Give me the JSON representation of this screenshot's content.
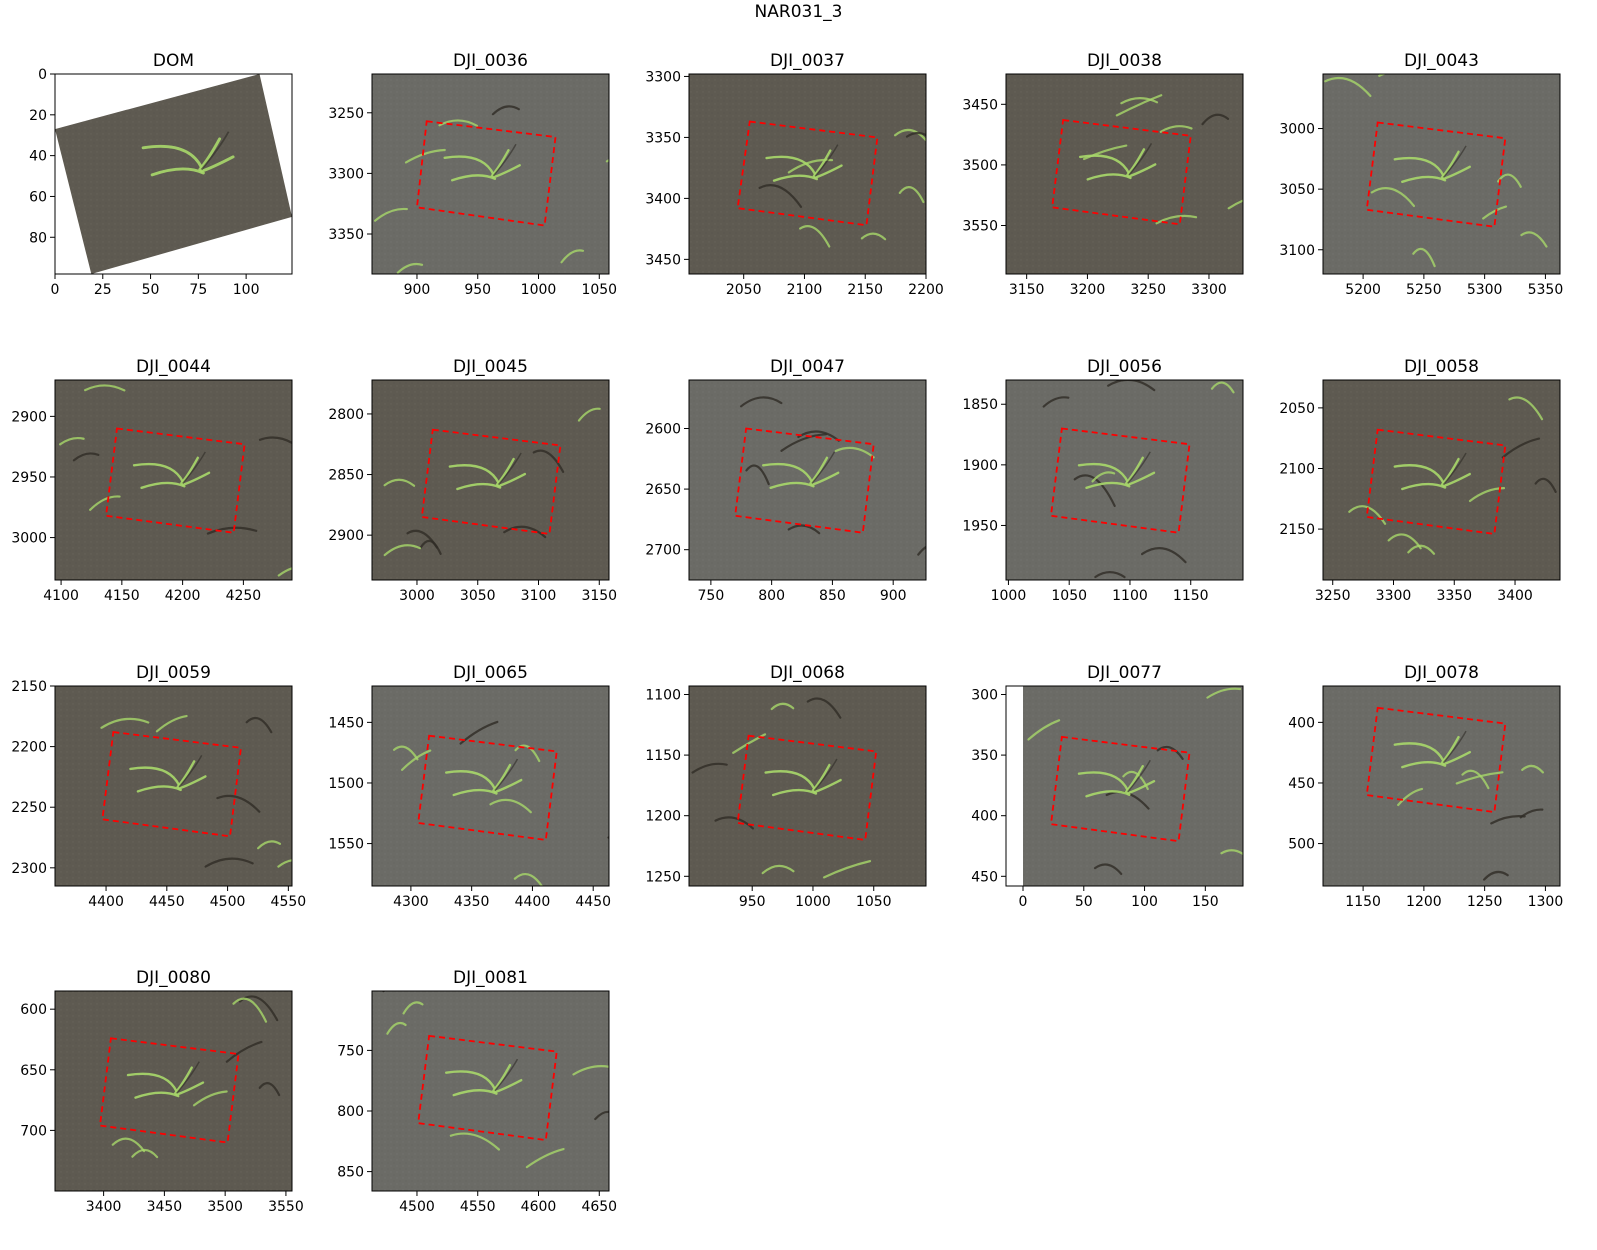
{
  "figure": {
    "title": "NAR031_3"
  },
  "colors": {
    "background": "#ffffff",
    "soil_dark": "#5e5a51",
    "soil_gray": "#6b6b66",
    "seedling": "#a8d86a",
    "shadow": "#2f2c26",
    "box_line": "#ff0000",
    "axis": "#000000"
  },
  "chart_data": [
    {
      "type": "image",
      "title": "DOM",
      "xticks": [
        0,
        25,
        50,
        75,
        100
      ],
      "xlim": [
        0,
        124
      ],
      "yticks": [
        0,
        20,
        40,
        60,
        80
      ],
      "ylim": [
        98,
        0
      ],
      "image_variant": "rotated-dom"
    },
    {
      "type": "image",
      "title": "DJI_0036",
      "xticks": [
        900,
        950,
        1000,
        1050
      ],
      "xlim": [
        863,
        1058
      ],
      "yticks": [
        3250,
        3300,
        3350
      ],
      "ylim": [
        3383,
        3218
      ],
      "box": [
        [
          908,
          3257
        ],
        [
          1014,
          3270
        ],
        [
          1005,
          3343
        ],
        [
          900,
          3328
        ]
      ],
      "soil": "gray"
    },
    {
      "type": "image",
      "title": "DJI_0037",
      "xticks": [
        2050,
        2100,
        2150,
        2200
      ],
      "xlim": [
        2005,
        2200
      ],
      "yticks": [
        3300,
        3350,
        3400,
        3450
      ],
      "ylim": [
        3462,
        3298
      ],
      "box": [
        [
          2055,
          3337
        ],
        [
          2160,
          3350
        ],
        [
          2151,
          3422
        ],
        [
          2045,
          3408
        ]
      ],
      "soil": "dark"
    },
    {
      "type": "image",
      "title": "DJI_0038",
      "xticks": [
        3150,
        3200,
        3250,
        3300
      ],
      "xlim": [
        3133,
        3328
      ],
      "yticks": [
        3450,
        3500,
        3550
      ],
      "ylim": [
        3590,
        3425
      ],
      "box": [
        [
          3180,
          3463
        ],
        [
          3285,
          3476
        ],
        [
          3276,
          3549
        ],
        [
          3171,
          3535
        ]
      ],
      "soil": "dark"
    },
    {
      "type": "image",
      "title": "DJI_0043",
      "xticks": [
        5200,
        5250,
        5300,
        5350
      ],
      "xlim": [
        5167,
        5362
      ],
      "yticks": [
        3000,
        3050,
        3100
      ],
      "ylim": [
        3120,
        2955
      ],
      "box": [
        [
          5212,
          2995
        ],
        [
          5317,
          3008
        ],
        [
          5308,
          3081
        ],
        [
          5203,
          3067
        ]
      ],
      "soil": "gray"
    },
    {
      "type": "image",
      "title": "DJI_0044",
      "xticks": [
        4100,
        4150,
        4200,
        4250
      ],
      "xlim": [
        4095,
        4290
      ],
      "yticks": [
        2900,
        2950,
        3000
      ],
      "ylim": [
        3035,
        2870
      ],
      "box": [
        [
          4146,
          2910
        ],
        [
          4251,
          2923
        ],
        [
          4242,
          2996
        ],
        [
          4137,
          2982
        ]
      ],
      "soil": "dark"
    },
    {
      "type": "image",
      "title": "DJI_0045",
      "xticks": [
        3000,
        3050,
        3100,
        3150
      ],
      "xlim": [
        2963,
        3158
      ],
      "yticks": [
        2800,
        2850,
        2900
      ],
      "ylim": [
        2937,
        2772
      ],
      "box": [
        [
          3013,
          2813
        ],
        [
          3118,
          2826
        ],
        [
          3109,
          2899
        ],
        [
          3004,
          2885
        ]
      ],
      "soil": "dark"
    },
    {
      "type": "image",
      "title": "DJI_0047",
      "xticks": [
        750,
        800,
        850,
        900
      ],
      "xlim": [
        732,
        927
      ],
      "yticks": [
        2600,
        2650,
        2700
      ],
      "ylim": [
        2725,
        2560
      ],
      "box": [
        [
          779,
          2600
        ],
        [
          884,
          2613
        ],
        [
          875,
          2686
        ],
        [
          770,
          2672
        ]
      ],
      "soil": "gray"
    },
    {
      "type": "image",
      "title": "DJI_0056",
      "xticks": [
        1000,
        1050,
        1100,
        1150
      ],
      "xlim": [
        998,
        1193
      ],
      "yticks": [
        1850,
        1900,
        1950
      ],
      "ylim": [
        1995,
        1830
      ],
      "box": [
        [
          1044,
          1870
        ],
        [
          1149,
          1883
        ],
        [
          1140,
          1956
        ],
        [
          1035,
          1942
        ]
      ],
      "soil": "gray"
    },
    {
      "type": "image",
      "title": "DJI_0058",
      "xticks": [
        3250,
        3300,
        3350,
        3400
      ],
      "xlim": [
        3242,
        3437
      ],
      "yticks": [
        2050,
        2100,
        2150
      ],
      "ylim": [
        2192,
        2027
      ],
      "box": [
        [
          3287,
          2068
        ],
        [
          3392,
          2081
        ],
        [
          3383,
          2154
        ],
        [
          3278,
          2140
        ]
      ],
      "soil": "dark"
    },
    {
      "type": "image",
      "title": "DJI_0059",
      "xticks": [
        4400,
        4450,
        4500,
        4550
      ],
      "xlim": [
        4358,
        4553
      ],
      "yticks": [
        2150,
        2200,
        2250,
        2300
      ],
      "ylim": [
        2315,
        2150
      ],
      "box": [
        [
          4406,
          2188
        ],
        [
          4511,
          2201
        ],
        [
          4502,
          2274
        ],
        [
          4397,
          2260
        ]
      ],
      "soil": "dark"
    },
    {
      "type": "image",
      "title": "DJI_0065",
      "xticks": [
        4300,
        4350,
        4400,
        4450
      ],
      "xlim": [
        4268,
        4463
      ],
      "yticks": [
        1450,
        1500,
        1550
      ],
      "ylim": [
        1585,
        1420
      ],
      "box": [
        [
          4315,
          1461
        ],
        [
          4420,
          1474
        ],
        [
          4411,
          1547
        ],
        [
          4306,
          1533
        ]
      ],
      "soil": "gray"
    },
    {
      "type": "image",
      "title": "DJI_0068",
      "xticks": [
        950,
        1000,
        1050
      ],
      "xlim": [
        898,
        1093
      ],
      "yticks": [
        1100,
        1150,
        1200,
        1250
      ],
      "ylim": [
        1258,
        1093
      ],
      "box": [
        [
          947,
          1134
        ],
        [
          1052,
          1147
        ],
        [
          1043,
          1220
        ],
        [
          938,
          1206
        ]
      ],
      "soil": "dark"
    },
    {
      "type": "image",
      "title": "DJI_0077",
      "xticks": [
        0,
        50,
        100,
        150
      ],
      "xlim": [
        -14,
        181
      ],
      "yticks": [
        300,
        350,
        400,
        450
      ],
      "ylim": [
        458,
        293
      ],
      "box": [
        [
          32,
          335
        ],
        [
          137,
          348
        ],
        [
          128,
          421
        ],
        [
          23,
          407
        ]
      ],
      "soil": "gray",
      "blank_left": 14
    },
    {
      "type": "image",
      "title": "DJI_0078",
      "xticks": [
        1150,
        1200,
        1250,
        1300
      ],
      "xlim": [
        1117,
        1312
      ],
      "yticks": [
        400,
        450,
        500
      ],
      "ylim": [
        535,
        370
      ],
      "box": [
        [
          1162,
          388
        ],
        [
          1267,
          401
        ],
        [
          1258,
          474
        ],
        [
          1153,
          460
        ]
      ],
      "soil": "gray"
    },
    {
      "type": "image",
      "title": "DJI_0080",
      "xticks": [
        3400,
        3450,
        3500,
        3550
      ],
      "xlim": [
        3360,
        3555
      ],
      "yticks": [
        600,
        650,
        700
      ],
      "ylim": [
        750,
        585
      ],
      "box": [
        [
          3406,
          624
        ],
        [
          3511,
          637
        ],
        [
          3502,
          710
        ],
        [
          3397,
          696
        ]
      ],
      "soil": "dark"
    },
    {
      "type": "image",
      "title": "DJI_0081",
      "xticks": [
        4500,
        4550,
        4600,
        4650
      ],
      "xlim": [
        4463,
        4658
      ],
      "yticks": [
        750,
        800,
        850
      ],
      "ylim": [
        866,
        701
      ],
      "box": [
        [
          4510,
          738
        ],
        [
          4615,
          751
        ],
        [
          4606,
          824
        ],
        [
          4501,
          810
        ]
      ],
      "soil": "gray"
    }
  ]
}
